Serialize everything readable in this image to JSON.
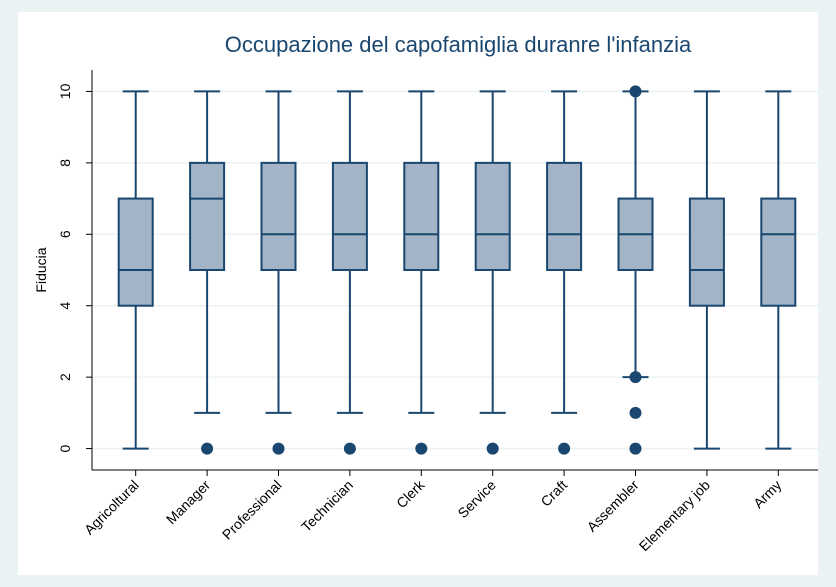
{
  "chart_data": {
    "type": "box",
    "title": "Occupazione del capofamiglia duranre l'infanzia",
    "y_label": "Fiducia",
    "categories": [
      "Agricoltural",
      "Manager",
      "Professional",
      "Technician",
      "Clerk",
      "Service",
      "Craft",
      "Assembler",
      "Elementary job",
      "Army"
    ],
    "boxes": [
      {
        "min": 0,
        "q1": 4,
        "median": 5,
        "q3": 7,
        "max": 10,
        "outliers": []
      },
      {
        "min": 1,
        "q1": 5,
        "median": 7,
        "q3": 8,
        "max": 10,
        "outliers": [
          0
        ]
      },
      {
        "min": 1,
        "q1": 5,
        "median": 6,
        "q3": 8,
        "max": 10,
        "outliers": [
          0
        ]
      },
      {
        "min": 1,
        "q1": 5,
        "median": 6,
        "q3": 8,
        "max": 10,
        "outliers": [
          0
        ]
      },
      {
        "min": 1,
        "q1": 5,
        "median": 6,
        "q3": 8,
        "max": 10,
        "outliers": [
          0
        ]
      },
      {
        "min": 1,
        "q1": 5,
        "median": 6,
        "q3": 8,
        "max": 10,
        "outliers": [
          0
        ]
      },
      {
        "min": 1,
        "q1": 5,
        "median": 6,
        "q3": 8,
        "max": 10,
        "outliers": [
          0
        ]
      },
      {
        "min": 2,
        "q1": 5,
        "median": 6,
        "q3": 7,
        "max": 10,
        "outliers": [
          10,
          2,
          1,
          0
        ]
      },
      {
        "min": 0,
        "q1": 4,
        "median": 5,
        "q3": 7,
        "max": 10,
        "outliers": []
      },
      {
        "min": 0,
        "q1": 4,
        "median": 6,
        "q3": 7,
        "max": 10,
        "outliers": []
      }
    ],
    "fill": "#a2b4c6",
    "stroke": "#1a476f",
    "ylim": [
      -0.6,
      10.6
    ],
    "yticks": [
      0,
      2,
      4,
      6,
      8,
      10
    ],
    "grid": true
  }
}
